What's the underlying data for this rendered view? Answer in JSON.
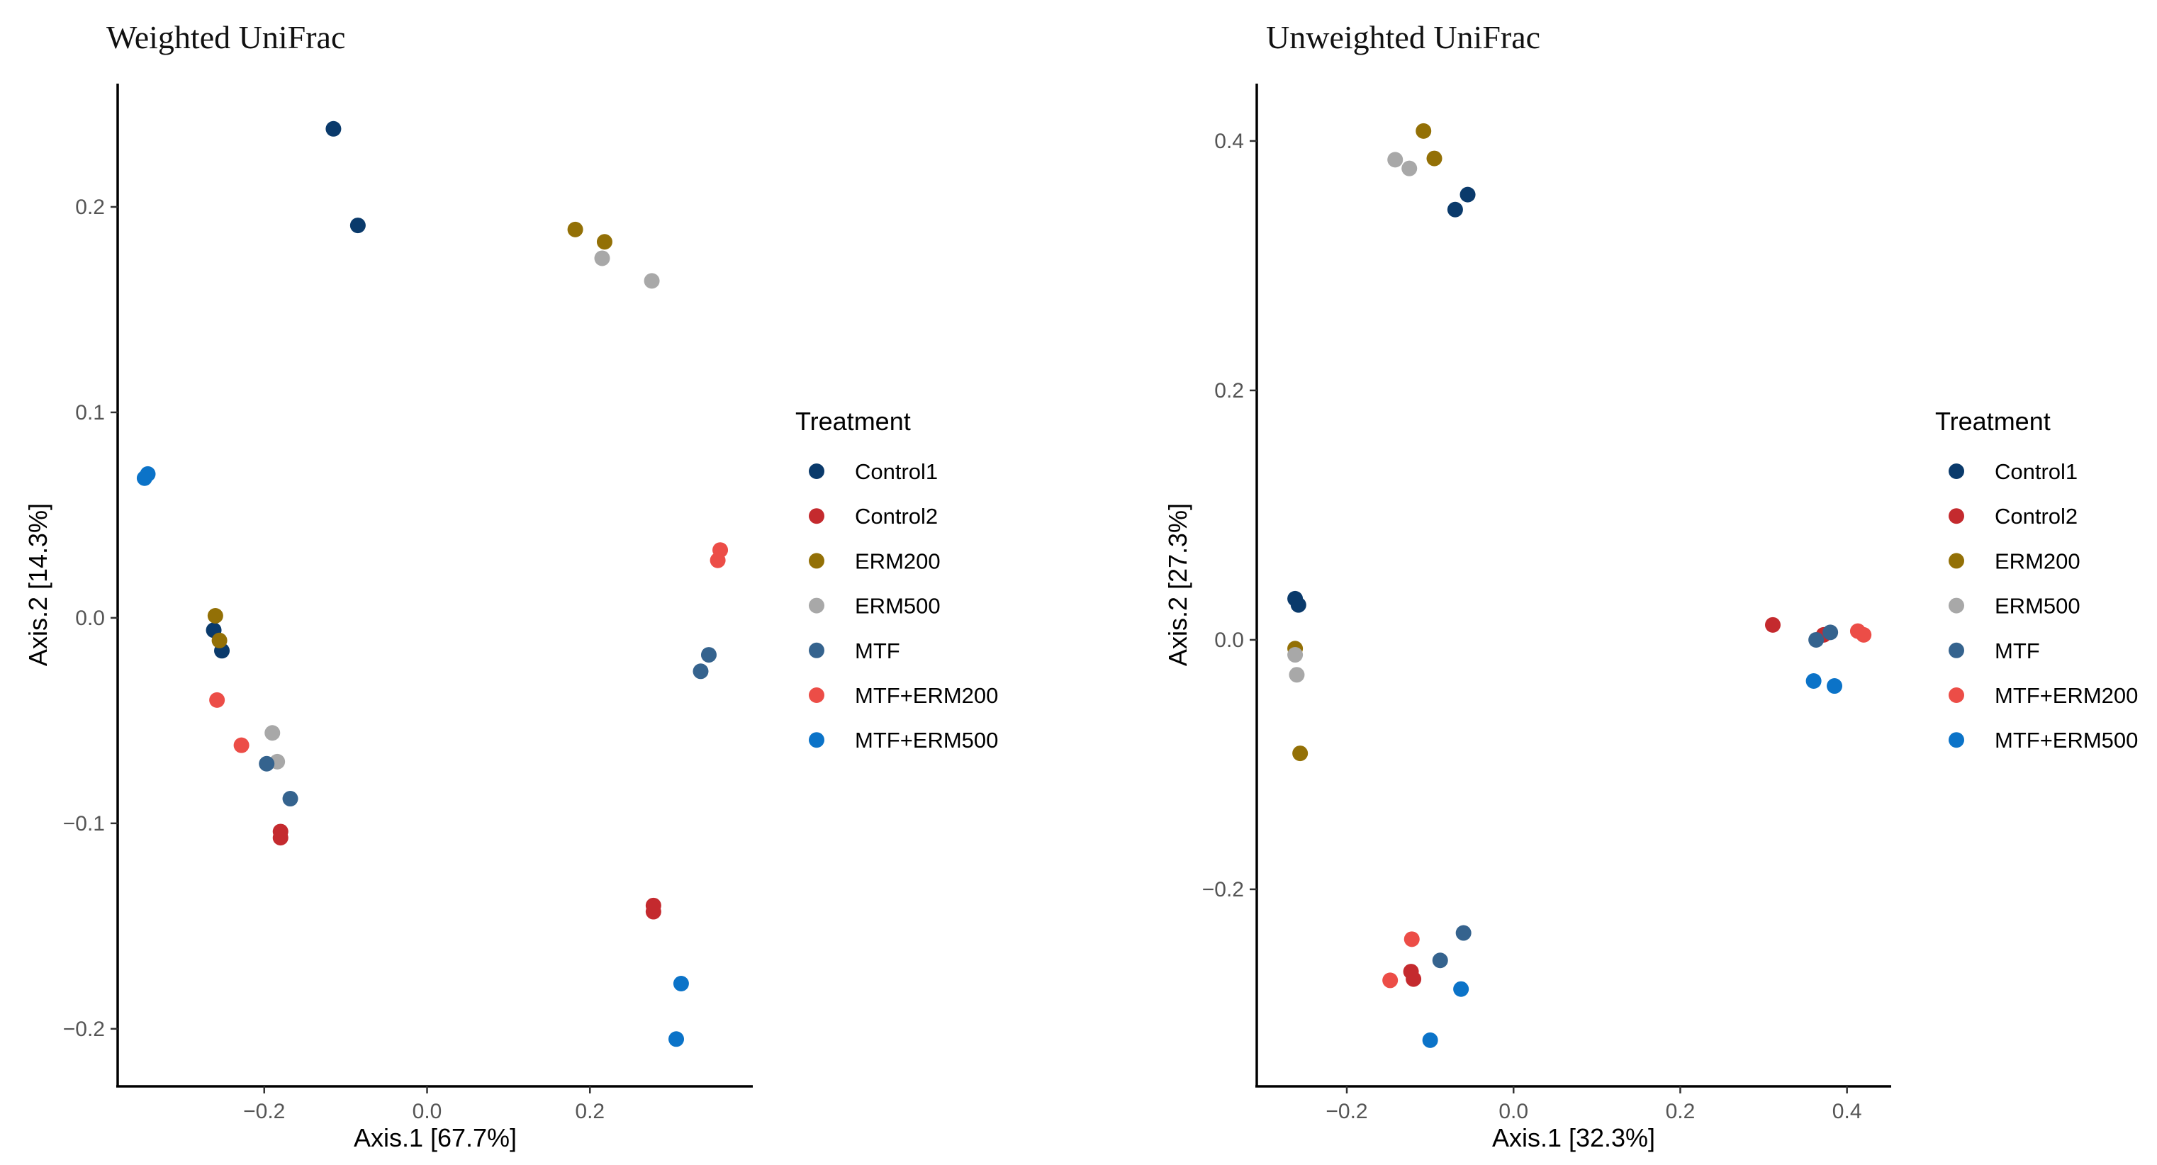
{
  "chart_data": [
    {
      "type": "scatter",
      "title": "Weighted UniFrac",
      "xlabel": "Axis.1   [67.7%]",
      "ylabel": "Axis.2   [14.3%]",
      "xlim": [
        -0.38,
        0.4
      ],
      "ylim": [
        -0.228,
        0.26
      ],
      "xticks": [
        -0.2,
        0.0,
        0.2
      ],
      "xtick_labels": [
        "−0.2",
        "0.0",
        "0.2"
      ],
      "yticks": [
        -0.2,
        -0.1,
        0.0,
        0.1,
        0.2
      ],
      "ytick_labels": [
        "−0.2",
        "−0.1",
        "0.0",
        "0.1",
        "0.2"
      ],
      "legend_title": "Treatment",
      "legend_position": "right",
      "grid": false,
      "series": [
        {
          "name": "Control1",
          "points": [
            [
              -0.115,
              0.238
            ],
            [
              -0.085,
              0.191
            ],
            [
              -0.262,
              -0.006
            ],
            [
              -0.252,
              -0.016
            ]
          ]
        },
        {
          "name": "Control2",
          "points": [
            [
              -0.18,
              -0.104
            ],
            [
              -0.18,
              -0.107
            ],
            [
              0.278,
              -0.14
            ],
            [
              0.278,
              -0.143
            ]
          ]
        },
        {
          "name": "ERM200",
          "points": [
            [
              0.182,
              0.189
            ],
            [
              0.218,
              0.183
            ],
            [
              -0.26,
              0.001
            ],
            [
              -0.255,
              -0.011
            ]
          ]
        },
        {
          "name": "ERM500",
          "points": [
            [
              0.215,
              0.175
            ],
            [
              0.276,
              0.164
            ],
            [
              -0.19,
              -0.056
            ],
            [
              -0.184,
              -0.07
            ]
          ]
        },
        {
          "name": "MTF",
          "points": [
            [
              0.346,
              -0.018
            ],
            [
              0.336,
              -0.026
            ],
            [
              -0.197,
              -0.071
            ],
            [
              -0.168,
              -0.088
            ]
          ]
        },
        {
          "name": "MTF+ERM200",
          "points": [
            [
              0.36,
              0.033
            ],
            [
              0.357,
              0.028
            ],
            [
              -0.258,
              -0.04
            ],
            [
              -0.228,
              -0.062
            ]
          ]
        },
        {
          "name": "MTF+ERM500",
          "points": [
            [
              -0.343,
              0.07
            ],
            [
              -0.347,
              0.068
            ],
            [
              0.312,
              -0.178
            ],
            [
              0.306,
              -0.205
            ]
          ]
        }
      ]
    },
    {
      "type": "scatter",
      "title": "Unweighted UniFrac",
      "xlabel": "Axis.1   [32.3%]",
      "ylabel": "Axis.2   [27.3%]",
      "xlim": [
        -0.308,
        0.453
      ],
      "ylim": [
        -0.358,
        0.446
      ],
      "xticks": [
        -0.2,
        0.0,
        0.2,
        0.4
      ],
      "xtick_labels": [
        "−0.2",
        "0.0",
        "0.2",
        "0.4"
      ],
      "yticks": [
        -0.2,
        0.0,
        0.2,
        0.4
      ],
      "ytick_labels": [
        "−0.2",
        "0.0",
        "0.2",
        "0.4"
      ],
      "legend_title": "Treatment",
      "legend_position": "right",
      "grid": false,
      "series": [
        {
          "name": "Control1",
          "points": [
            [
              -0.262,
              0.033
            ],
            [
              -0.258,
              0.028
            ],
            [
              -0.07,
              0.345
            ],
            [
              -0.055,
              0.357
            ]
          ]
        },
        {
          "name": "Control2",
          "points": [
            [
              0.311,
              0.012
            ],
            [
              0.372,
              0.004
            ],
            [
              -0.123,
              -0.266
            ],
            [
              -0.12,
              -0.272
            ]
          ]
        },
        {
          "name": "ERM200",
          "points": [
            [
              -0.108,
              0.408
            ],
            [
              -0.095,
              0.386
            ],
            [
              -0.262,
              -0.007
            ],
            [
              -0.256,
              -0.091
            ]
          ]
        },
        {
          "name": "ERM500",
          "points": [
            [
              -0.142,
              0.385
            ],
            [
              -0.125,
              0.378
            ],
            [
              -0.262,
              -0.012
            ],
            [
              -0.26,
              -0.028
            ]
          ]
        },
        {
          "name": "MTF",
          "points": [
            [
              0.363,
              0.0
            ],
            [
              0.38,
              0.006
            ],
            [
              -0.06,
              -0.235
            ],
            [
              -0.088,
              -0.257
            ]
          ]
        },
        {
          "name": "MTF+ERM200",
          "points": [
            [
              0.413,
              0.007
            ],
            [
              0.42,
              0.004
            ],
            [
              -0.122,
              -0.24
            ],
            [
              -0.148,
              -0.273
            ]
          ]
        },
        {
          "name": "MTF+ERM500",
          "points": [
            [
              0.36,
              -0.033
            ],
            [
              0.385,
              -0.037
            ],
            [
              -0.063,
              -0.28
            ],
            [
              -0.1,
              -0.321
            ]
          ]
        }
      ]
    }
  ],
  "legend": {
    "title": "Treatment",
    "items": [
      {
        "name": "Control1",
        "color": "#0a3a6b"
      },
      {
        "name": "Control2",
        "color": "#c42a2e"
      },
      {
        "name": "ERM200",
        "color": "#937006"
      },
      {
        "name": "ERM500",
        "color": "#a8a8a8"
      },
      {
        "name": "MTF",
        "color": "#35638e"
      },
      {
        "name": "MTF+ERM200",
        "color": "#ec4d47"
      },
      {
        "name": "MTF+ERM500",
        "color": "#0b73c8"
      }
    ]
  }
}
